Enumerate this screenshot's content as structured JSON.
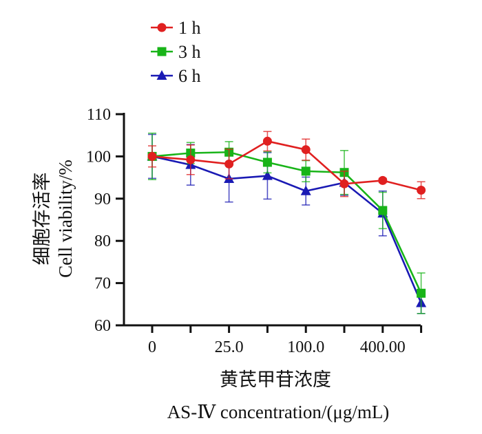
{
  "chart_data": {
    "type": "line",
    "x": [
      0,
      1,
      2,
      3,
      4,
      5,
      6,
      7
    ],
    "xticks": [
      {
        "pos": 0,
        "label": "0"
      },
      {
        "pos": 2,
        "label": "25.0"
      },
      {
        "pos": 4,
        "label": "100.0"
      },
      {
        "pos": 6,
        "label": "400.00"
      }
    ],
    "ylim": [
      60,
      110
    ],
    "yticks": [
      60,
      70,
      80,
      90,
      100,
      110
    ],
    "ylabel_cn": "细胞存活率",
    "ylabel_en": "Cell viability/%",
    "xlabel_cn": "黄芪甲苷浓度",
    "xlabel_en": "AS-Ⅳ concentration/(μg/mL)",
    "legend_position": "top-left",
    "series": [
      {
        "name": "1 h",
        "color": "#e02020",
        "marker": "circle",
        "values": [
          100,
          99.2,
          98.2,
          103.6,
          101.6,
          93.5,
          94.3,
          92.0
        ],
        "errors": [
          2.5,
          3.5,
          3.5,
          2.3,
          2.5,
          3.0,
          0.5,
          2.0
        ]
      },
      {
        "name": "3 h",
        "color": "#18b418",
        "marker": "square",
        "values": [
          100,
          100.8,
          101.0,
          98.6,
          96.5,
          96.2,
          87.2,
          67.6
        ],
        "errors": [
          5.5,
          2.5,
          2.5,
          2.5,
          2.5,
          5.2,
          4.3,
          4.8
        ]
      },
      {
        "name": "6 h",
        "color": "#1a1ab4",
        "marker": "triangle",
        "values": [
          100,
          98.0,
          94.7,
          95.4,
          91.8,
          93.8,
          86.5,
          65.3
        ],
        "errors": [
          5.2,
          4.8,
          5.5,
          5.5,
          3.3,
          3.0,
          5.3,
          2.5
        ]
      }
    ]
  }
}
